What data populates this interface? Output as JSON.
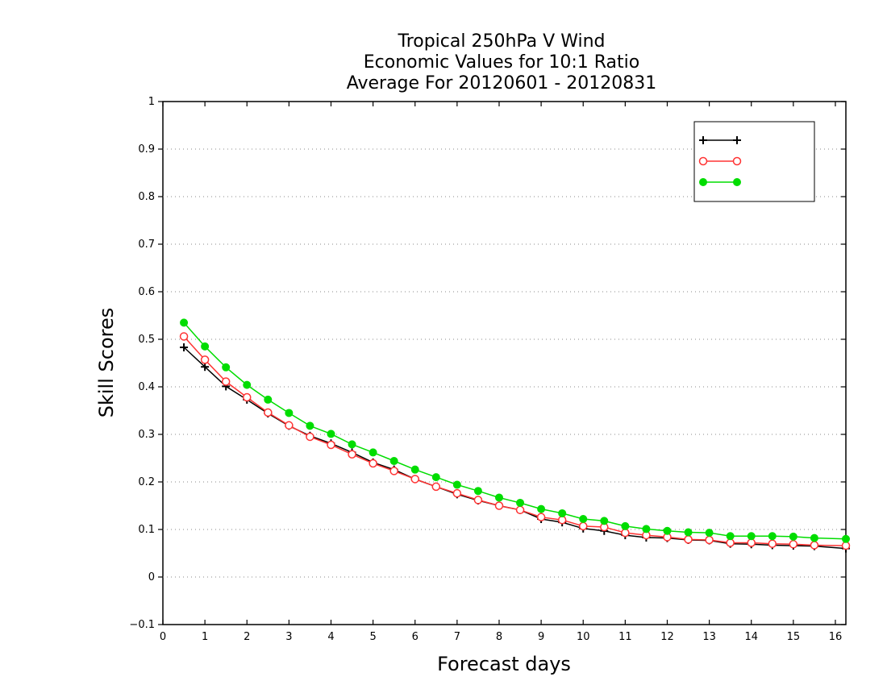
{
  "chart_data": {
    "type": "line",
    "title": [
      "Tropical 250hPa V Wind",
      "Economic Values for 10:1 Ratio",
      "Average For 20120601 - 20120831"
    ],
    "xlabel": "Forecast days",
    "ylabel": "Skill Scores",
    "xlim": [
      0,
      16.25
    ],
    "ylim": [
      -0.1,
      1.0
    ],
    "xticks": [
      "0",
      "1",
      "2",
      "3",
      "4",
      "5",
      "6",
      "7",
      "8",
      "9",
      "10",
      "11",
      "12",
      "13",
      "14",
      "15",
      "16"
    ],
    "yticks": [
      "−0.1",
      "0",
      "0.1",
      "0.2",
      "0.3",
      "0.4",
      "0.5",
      "0.6",
      "0.7",
      "0.8",
      "0.9",
      "1"
    ],
    "grid": "horizontal dotted",
    "legend_position": "top-right",
    "x": [
      0.5,
      1,
      1.5,
      2,
      2.5,
      3,
      3.5,
      4,
      4.5,
      5,
      5.5,
      6,
      6.5,
      7,
      7.5,
      8,
      8.5,
      9,
      9.5,
      10,
      10.5,
      11,
      11.5,
      12,
      12.5,
      13,
      13.5,
      14,
      14.5,
      15,
      15.5,
      16.25
    ],
    "series": [
      {
        "name": "",
        "color": "#000000",
        "marker": "plus",
        "values": [
          0.483,
          0.442,
          0.401,
          0.373,
          0.344,
          0.318,
          0.297,
          0.281,
          0.262,
          0.241,
          0.226,
          0.206,
          0.19,
          0.174,
          0.161,
          0.15,
          0.141,
          0.122,
          0.115,
          0.102,
          0.097,
          0.088,
          0.083,
          0.082,
          0.078,
          0.077,
          0.07,
          0.069,
          0.067,
          0.066,
          0.065,
          0.06
        ]
      },
      {
        "name": "",
        "color": "#ff3333",
        "marker": "open-circle",
        "values": [
          0.506,
          0.457,
          0.411,
          0.378,
          0.346,
          0.319,
          0.295,
          0.278,
          0.258,
          0.239,
          0.223,
          0.206,
          0.19,
          0.176,
          0.162,
          0.15,
          0.141,
          0.126,
          0.12,
          0.107,
          0.105,
          0.093,
          0.088,
          0.084,
          0.079,
          0.078,
          0.072,
          0.072,
          0.07,
          0.069,
          0.067,
          0.066
        ]
      },
      {
        "name": "",
        "color": "#00dd00",
        "marker": "filled-circle",
        "values": [
          0.535,
          0.485,
          0.441,
          0.404,
          0.373,
          0.345,
          0.318,
          0.301,
          0.279,
          0.262,
          0.244,
          0.226,
          0.21,
          0.194,
          0.181,
          0.167,
          0.156,
          0.143,
          0.134,
          0.122,
          0.118,
          0.107,
          0.101,
          0.097,
          0.094,
          0.093,
          0.086,
          0.086,
          0.086,
          0.085,
          0.082,
          0.08
        ]
      }
    ]
  }
}
